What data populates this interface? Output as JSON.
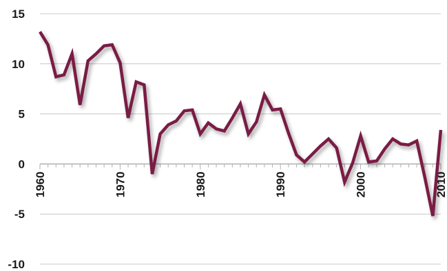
{
  "chart_data": {
    "type": "line",
    "title": "",
    "xlabel": "",
    "ylabel": "",
    "xlim": [
      1960,
      2010
    ],
    "ylim": [
      -10,
      15
    ],
    "y_ticks": [
      "15",
      "10",
      "5",
      "0",
      "-5",
      "-10"
    ],
    "x_ticks": [
      "1960",
      "1970",
      "1980",
      "1990",
      "2000",
      "2010"
    ],
    "grid": "horizontal",
    "line_color": "#7a1f44",
    "grid_color": "#c8c8c8",
    "axis_color": "#b0b0b0",
    "x": [
      1960,
      1961,
      1962,
      1963,
      1964,
      1965,
      1966,
      1967,
      1968,
      1969,
      1970,
      1971,
      1972,
      1973,
      1974,
      1975,
      1976,
      1977,
      1978,
      1979,
      1980,
      1981,
      1982,
      1983,
      1984,
      1985,
      1986,
      1987,
      1988,
      1989,
      1990,
      1991,
      1992,
      1993,
      1994,
      1995,
      1996,
      1997,
      1998,
      1999,
      2000,
      2001,
      2002,
      2003,
      2004,
      2005,
      2006,
      2007,
      2008,
      2009,
      2010
    ],
    "series": [
      {
        "values": [
          13.2,
          11.9,
          8.7,
          8.9,
          11.0,
          5.9,
          10.3,
          11.0,
          11.8,
          11.9,
          10.1,
          4.6,
          8.2,
          7.9,
          -1.0,
          3.0,
          3.9,
          4.3,
          5.3,
          5.4,
          3.0,
          4.1,
          3.5,
          3.3,
          4.6,
          6.0,
          3.0,
          4.2,
          6.9,
          5.4,
          5.5,
          3.1,
          0.9,
          0.2,
          1.0,
          1.8,
          2.5,
          1.6,
          -1.8,
          0.1,
          2.8,
          0.2,
          0.3,
          1.5,
          2.5,
          2.0,
          1.9,
          2.3,
          -1.3,
          -5.2,
          3.4
        ]
      }
    ]
  }
}
